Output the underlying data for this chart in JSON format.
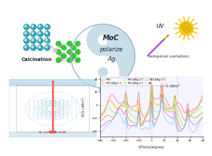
{
  "background_color": "#ffffff",
  "text_moc": "MoC",
  "text_polarize": "polarize",
  "text_ag": "Ag",
  "text_calcination": "Calcination",
  "text_uv": "uv",
  "text_temporal": "temporal variation",
  "yin_yang_light": "#c8dfe8",
  "annotation": "37.4 dBm²",
  "rl_min": "RL_min=-56.31dB",
  "uv_beam_colors": [
    "#ff3333",
    "#ff8800",
    "#ffdd00",
    "#44cc44",
    "#4499ff",
    "#cc44ff"
  ],
  "line_colors": [
    "#ff69b4",
    "#ffa500",
    "#90ee90",
    "#ccaa00",
    "#da70d6",
    "#87ceeb"
  ],
  "line_labels": [
    "MoC",
    "MoC@Ag-1:1",
    "MoC@Ag-1:2",
    "MoC@Ag-1:3",
    "MoC@Ag-1:4",
    "Ag"
  ],
  "sun_color": "#f5c518",
  "arrow_down_color": "#a0c8e0",
  "calc_arrow_color": "#c0c0c0"
}
